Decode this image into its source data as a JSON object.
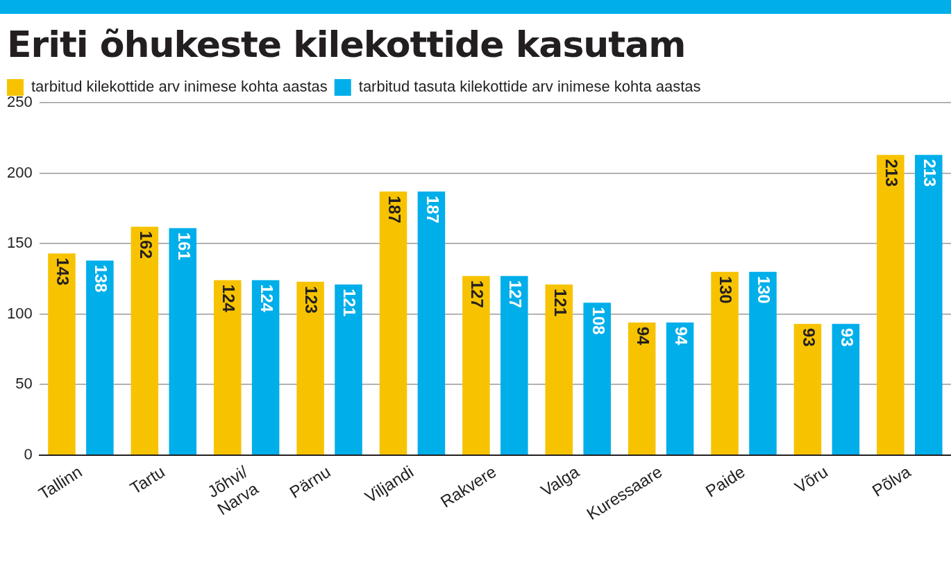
{
  "chart_data": {
    "type": "bar",
    "title": "Eriti õhukeste kilekottide kasutam",
    "categories": [
      "Tallinn",
      "Tartu",
      "Jõhvi/Narva",
      "Pärnu",
      "Viljandi",
      "Rakvere",
      "Valga",
      "Kuressaare",
      "Paide",
      "Võru",
      "Põlva"
    ],
    "series": [
      {
        "name": "tarbitud kilekottide arv inimese kohta aastas",
        "color": "#f7c300",
        "values": [
          143,
          162,
          124,
          123,
          187,
          127,
          121,
          94,
          130,
          93,
          213
        ]
      },
      {
        "name": "tarbitud tasuta kilekottide arv inimese kohta aastas",
        "color": "#00aeea",
        "values": [
          138,
          161,
          124,
          121,
          187,
          127,
          108,
          94,
          130,
          93,
          213
        ]
      }
    ],
    "ylim": [
      0,
      250
    ],
    "yticks": [
      0,
      50,
      100,
      150,
      200,
      250
    ],
    "grid": "y",
    "legend": "top left",
    "data_labels": true
  }
}
